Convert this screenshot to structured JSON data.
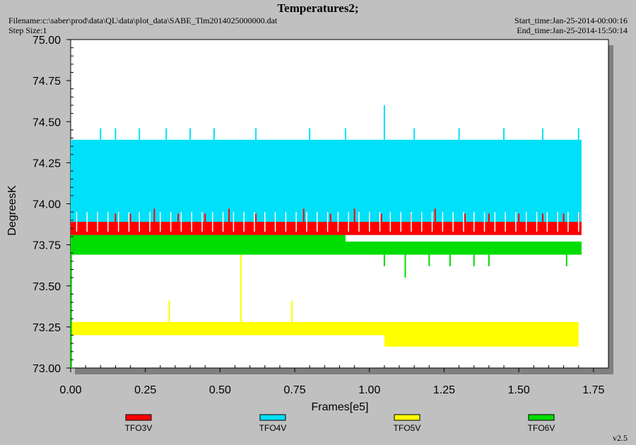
{
  "header": {
    "title": "Temperatures2;",
    "filename": "Filename:c:\\saber\\prod\\data\\QL\\data\\plot_data\\SABE_Tlm2014025000000.dat",
    "step_size": "Step Size:1",
    "start_time": "Start_time:Jan-25-2014-00:00:16",
    "end_time": "End_time:Jan-25-2014-15:50:14"
  },
  "footer": {
    "version": "v2.5"
  },
  "chart_data": {
    "type": "line",
    "title": "Temperatures2;",
    "xlabel": "Frames[e5]",
    "ylabel": "DegreesK",
    "xlim": [
      0,
      1.8
    ],
    "ylim": [
      73.0,
      75.0
    ],
    "x_ticks": [
      "0.00",
      "0.25",
      "0.50",
      "0.75",
      "1.00",
      "1.25",
      "1.50",
      "1.75"
    ],
    "x_tick_values": [
      0,
      0.25,
      0.5,
      0.75,
      1.0,
      1.25,
      1.5,
      1.75
    ],
    "y_ticks": [
      "73.00",
      "73.25",
      "73.50",
      "73.75",
      "74.00",
      "74.25",
      "74.50",
      "74.75",
      "75.00"
    ],
    "y_tick_values": [
      73.0,
      73.25,
      73.5,
      73.75,
      74.0,
      74.25,
      74.5,
      74.75,
      75.0
    ],
    "grid": false,
    "legend_position": "bottom",
    "series": [
      {
        "name": "TFO3V",
        "color": "#ff0000",
        "band": [
          73.81,
          73.89
        ],
        "x_range": [
          0.0,
          1.71
        ],
        "spikes": [
          [
            0.15,
            73.94
          ],
          [
            0.2,
            73.94
          ],
          [
            0.28,
            73.97
          ],
          [
            0.36,
            73.94
          ],
          [
            0.45,
            73.94
          ],
          [
            0.53,
            73.97
          ],
          [
            0.62,
            73.94
          ],
          [
            0.78,
            73.97
          ],
          [
            0.87,
            73.94
          ],
          [
            0.95,
            73.97
          ],
          [
            1.04,
            73.94
          ],
          [
            1.14,
            73.94
          ],
          [
            1.22,
            73.97
          ],
          [
            1.32,
            73.94
          ],
          [
            1.4,
            73.94
          ],
          [
            1.5,
            73.94
          ],
          [
            1.58,
            73.94
          ],
          [
            1.65,
            73.94
          ],
          [
            1.7,
            73.94
          ]
        ]
      },
      {
        "name": "TFO4V",
        "color": "#00e0f8",
        "band": [
          73.81,
          74.39
        ],
        "x_range": [
          0.0,
          1.71
        ],
        "spikes": [
          [
            0.1,
            74.46
          ],
          [
            0.15,
            74.46
          ],
          [
            0.23,
            74.46
          ],
          [
            0.32,
            74.46
          ],
          [
            0.4,
            74.46
          ],
          [
            0.48,
            74.46
          ],
          [
            0.62,
            74.46
          ],
          [
            0.8,
            74.46
          ],
          [
            0.92,
            74.46
          ],
          [
            1.05,
            74.6
          ],
          [
            1.15,
            74.46
          ],
          [
            1.3,
            74.46
          ],
          [
            1.45,
            74.46
          ],
          [
            1.58,
            74.46
          ],
          [
            1.7,
            74.46
          ]
        ]
      },
      {
        "name": "TFO5V",
        "color": "#ffff00",
        "segments": [
          [
            0.0,
            1.05,
            73.2,
            73.28
          ],
          [
            1.05,
            1.7,
            73.13,
            73.28
          ]
        ],
        "x_range": [
          0.0,
          1.71
        ],
        "spikes": [
          [
            0.33,
            73.41
          ],
          [
            0.57,
            73.69
          ],
          [
            0.74,
            73.41
          ]
        ]
      },
      {
        "name": "TFO6V",
        "color": "#00dd00",
        "segments": [
          [
            0.0,
            0.92,
            73.69,
            73.82
          ],
          [
            0.92,
            1.71,
            73.69,
            73.77
          ]
        ],
        "x_range": [
          0.0,
          1.71
        ],
        "low_spikes": [
          [
            1.05,
            73.62
          ],
          [
            1.12,
            73.55
          ],
          [
            1.2,
            73.62
          ],
          [
            1.27,
            73.62
          ],
          [
            1.35,
            73.62
          ],
          [
            1.4,
            73.62
          ],
          [
            1.66,
            73.62
          ]
        ],
        "start_drop": 73.0
      }
    ]
  }
}
